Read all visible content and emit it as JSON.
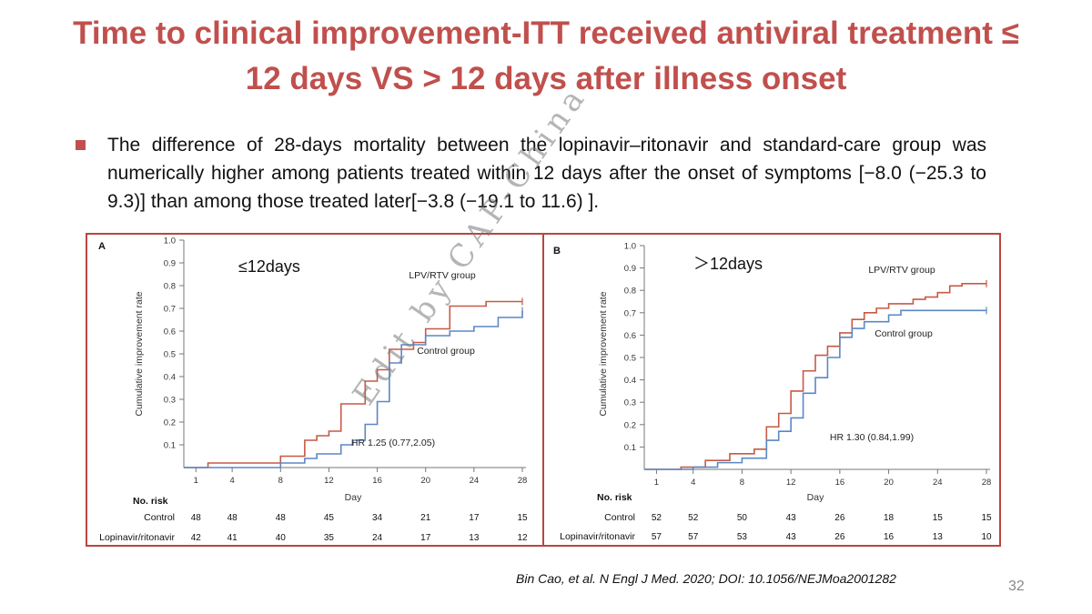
{
  "slide": {
    "title_line1": "Time to clinical improvement-ITT received antiviral treatment ≤",
    "title_line2": "12 days VS > 12 days after illness onset",
    "bullet_text": "The difference of 28-days mortality between the lopinavir–ritonavir and standard-care group was numerically higher among patients treated within 12 days after the onset of symptoms [−8.0 (−25.3 to 9.3)] than among those treated later[−3.8 (−19.1 to 11.6) ].",
    "citation": "Bin Cao, et al. N Engl J Med. 2020; DOI: 10.1056/NEJMoa2001282",
    "page_number": "32",
    "watermark": "Edit by CAP-China"
  },
  "colors": {
    "title": "#c0504d",
    "lpv": "#c65a45",
    "control": "#5b87c5",
    "border": "#b8463f"
  },
  "chart_data": [
    {
      "type": "line",
      "panel": "A",
      "heading": "≤12days",
      "xlabel": "Day",
      "ylabel": "Cumulative improvement rate",
      "xlim": [
        0,
        28
      ],
      "ylim": [
        0,
        1.0
      ],
      "xticks": [
        1,
        4,
        8,
        12,
        16,
        20,
        24,
        28
      ],
      "yticks": [
        0.1,
        0.2,
        0.3,
        0.4,
        0.5,
        0.6,
        0.7,
        0.8,
        0.9,
        1.0
      ],
      "hr": "HR 1.25 (0.77,2.05)",
      "series": [
        {
          "name": "LPV/RTV group",
          "color": "#c65a45",
          "x": [
            0,
            2,
            8,
            10,
            11,
            12,
            13,
            15,
            16,
            17,
            19,
            20,
            22,
            25,
            28
          ],
          "y": [
            0.0,
            0.02,
            0.05,
            0.12,
            0.14,
            0.16,
            0.28,
            0.38,
            0.43,
            0.52,
            0.55,
            0.61,
            0.71,
            0.73,
            0.73
          ]
        },
        {
          "name": "Control group",
          "color": "#5b87c5",
          "x": [
            0,
            8,
            10,
            11,
            13,
            14,
            15,
            16,
            17,
            18,
            20,
            22,
            24,
            26,
            28
          ],
          "y": [
            0.0,
            0.02,
            0.04,
            0.06,
            0.1,
            0.12,
            0.19,
            0.29,
            0.46,
            0.54,
            0.58,
            0.6,
            0.62,
            0.66,
            0.69
          ]
        }
      ],
      "risk_table": {
        "header": "No. risk",
        "rows": [
          {
            "label": "Control",
            "values": [
              "48",
              "48",
              "48",
              "45",
              "34",
              "21",
              "17",
              "15"
            ]
          },
          {
            "label": "Lopinavir/ritonavir",
            "values": [
              "42",
              "41",
              "40",
              "35",
              "24",
              "17",
              "13",
              "12"
            ]
          }
        ]
      }
    },
    {
      "type": "line",
      "panel": "B",
      "heading": "＞12days",
      "xlabel": "Day",
      "ylabel": "Cumulative improvement rate",
      "xlim": [
        0,
        28
      ],
      "ylim": [
        0,
        1.0
      ],
      "xticks": [
        1,
        4,
        8,
        12,
        16,
        20,
        24,
        28
      ],
      "yticks": [
        0.1,
        0.2,
        0.3,
        0.4,
        0.5,
        0.6,
        0.7,
        0.8,
        0.9,
        1.0
      ],
      "hr": "HR 1.30 (0.84,1.99)",
      "series": [
        {
          "name": "LPV/RTV group",
          "color": "#c65a45",
          "x": [
            0,
            3,
            5,
            7,
            9,
            10,
            11,
            12,
            13,
            14,
            15,
            16,
            17,
            18,
            19,
            20,
            22,
            23,
            24,
            25,
            26,
            28
          ],
          "y": [
            0.0,
            0.01,
            0.04,
            0.07,
            0.09,
            0.19,
            0.25,
            0.35,
            0.44,
            0.51,
            0.55,
            0.61,
            0.67,
            0.7,
            0.72,
            0.74,
            0.76,
            0.77,
            0.79,
            0.82,
            0.83,
            0.83
          ]
        },
        {
          "name": "Control group",
          "color": "#5b87c5",
          "x": [
            0,
            4,
            6,
            8,
            10,
            11,
            12,
            13,
            14,
            15,
            16,
            17,
            18,
            20,
            21,
            22,
            28
          ],
          "y": [
            0.0,
            0.01,
            0.03,
            0.05,
            0.13,
            0.17,
            0.23,
            0.34,
            0.41,
            0.5,
            0.59,
            0.63,
            0.66,
            0.69,
            0.71,
            0.71,
            0.71
          ]
        }
      ],
      "risk_table": {
        "header": "No. risk",
        "rows": [
          {
            "label": "Control",
            "values": [
              "52",
              "52",
              "50",
              "43",
              "26",
              "18",
              "15",
              "15"
            ]
          },
          {
            "label": "Lopinavir/ritonavir",
            "values": [
              "57",
              "57",
              "53",
              "43",
              "26",
              "16",
              "13",
              "10"
            ]
          }
        ]
      }
    }
  ]
}
